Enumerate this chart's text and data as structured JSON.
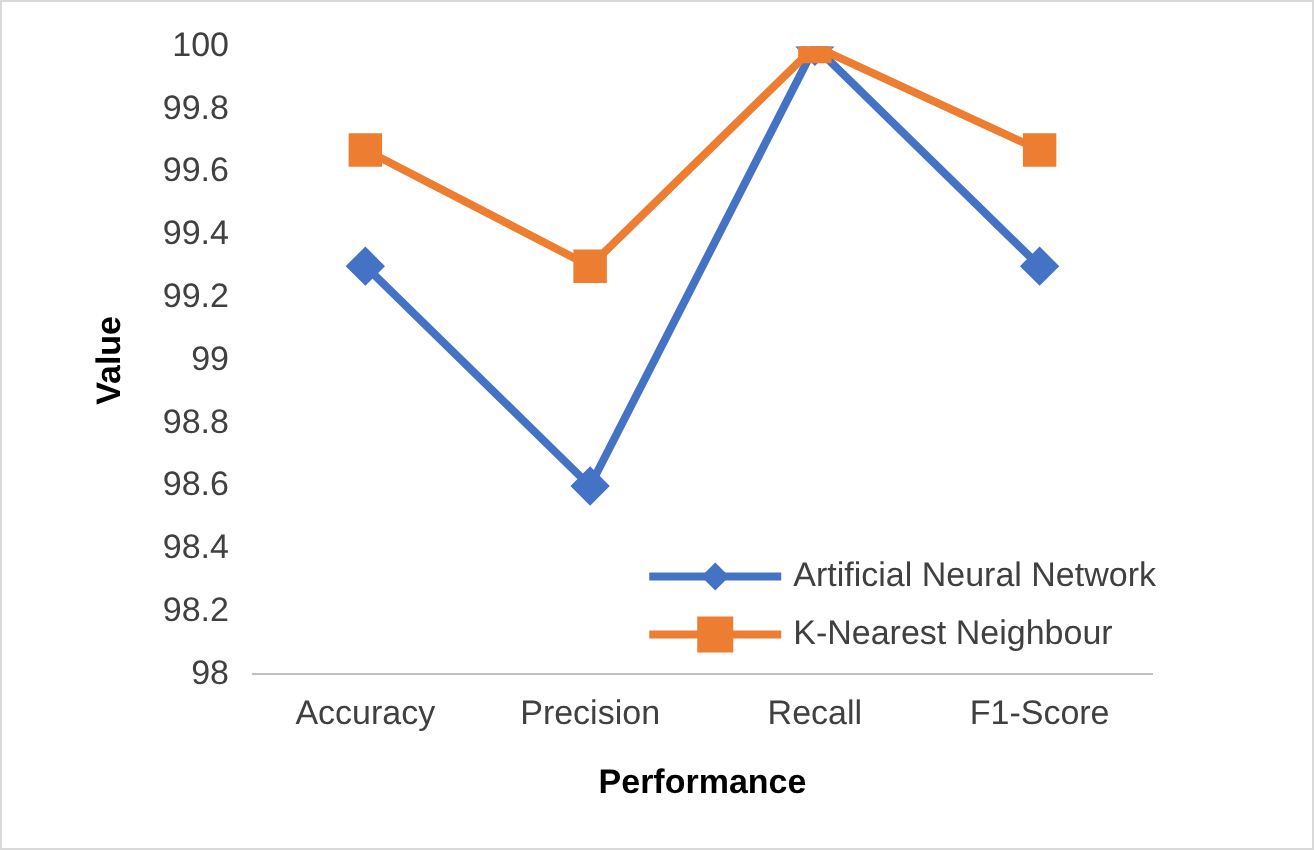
{
  "chart_data": {
    "type": "line",
    "xlabel": "Performance",
    "ylabel": "Value",
    "categories": [
      "Accuracy",
      "Precision",
      "Recall",
      "F1-Score"
    ],
    "series": [
      {
        "name": "Artificial Neural Network",
        "color": "#4472c4",
        "marker": "diamond",
        "values": [
          99.3,
          98.6,
          100,
          99.3
        ]
      },
      {
        "name": "K-Nearest Neighbour",
        "color": "#ed7d31",
        "marker": "square",
        "values": [
          99.67,
          99.3,
          100,
          99.67
        ]
      }
    ],
    "ylim": [
      98,
      100
    ],
    "yticks": [
      98,
      98.2,
      98.4,
      98.6,
      98.8,
      99,
      99.2,
      99.4,
      99.6,
      99.8,
      100
    ],
    "grid": false,
    "legend": "bottom right",
    "line_style": "solid"
  }
}
